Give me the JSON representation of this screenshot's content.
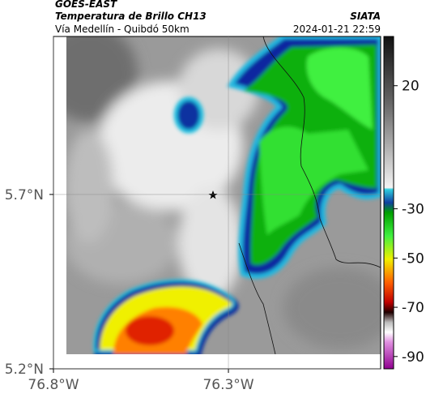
{
  "header": {
    "title": "GOES-EAST",
    "subtitle": "Temperatura de Brillo CH13",
    "source": "SIATA",
    "route": "Vía Medellín - Quibdó 50km",
    "timestamp": "2024-01-21 22:59"
  },
  "map": {
    "lonlim": [
      -76.8,
      -75.865
    ],
    "latlim": [
      5.2,
      6.153
    ],
    "lon_ticks": [
      {
        "value": -76.8,
        "label": "76.8°W"
      },
      {
        "value": -76.3,
        "label": "76.3°W"
      }
    ],
    "lat_ticks": [
      {
        "value": 5.7,
        "label": "5.7°N"
      },
      {
        "value": 5.2,
        "label": "5.2°N"
      }
    ]
  },
  "colorbar": {
    "clim": [
      -95,
      40
    ],
    "ticks": [
      20,
      -30,
      -50,
      -70,
      -90
    ]
  }
}
